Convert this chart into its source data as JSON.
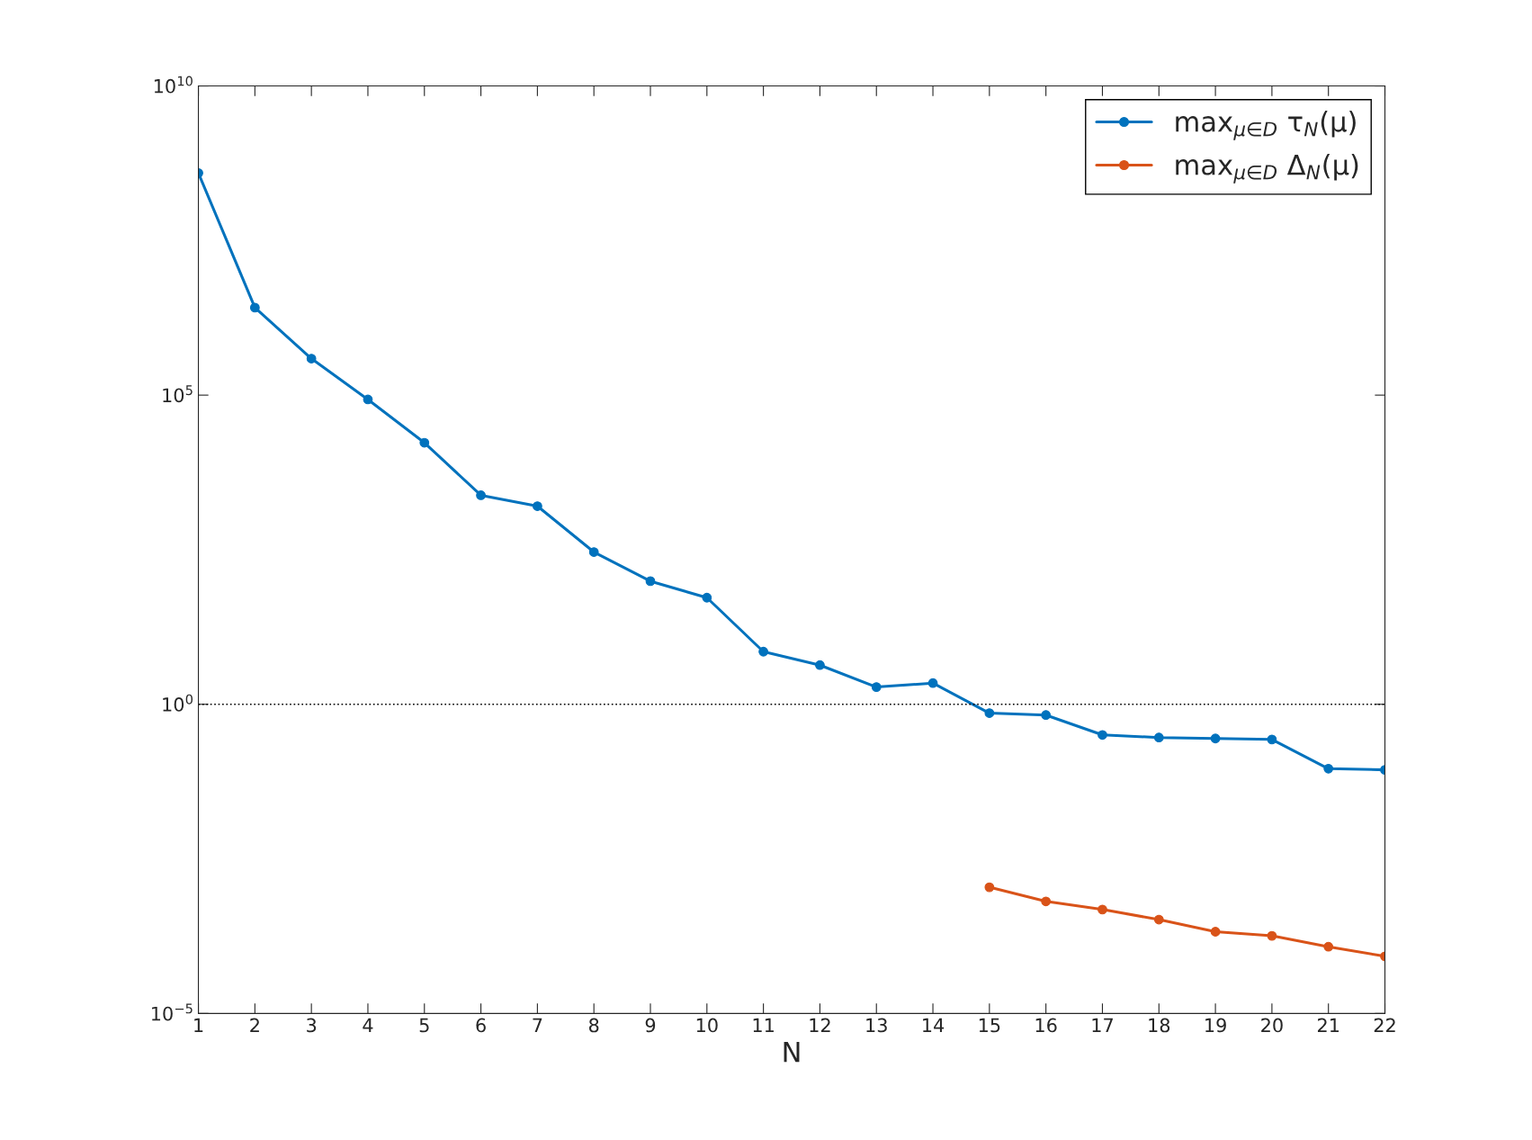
{
  "chart_data": {
    "type": "line",
    "xlabel": "N",
    "x": [
      1,
      2,
      3,
      4,
      5,
      6,
      7,
      8,
      9,
      10,
      11,
      12,
      13,
      14,
      15,
      16,
      17,
      18,
      19,
      20,
      21,
      22
    ],
    "series": [
      {
        "name": "max$_{μ∈D}$ τ$_{N}$(μ)",
        "color": "#0072bd",
        "values": [
          390000000,
          2600000,
          390000,
          85000,
          17000,
          2400,
          1600,
          290,
          98,
          53,
          7.1,
          4.3,
          1.9,
          2.2,
          0.72,
          0.67,
          0.32,
          0.29,
          0.28,
          0.27,
          0.091,
          0.087
        ]
      },
      {
        "name": "max$_{μ∈D}$ Δ$_{N}$(μ)",
        "color": "#d95319",
        "values": [
          null,
          null,
          null,
          null,
          null,
          null,
          null,
          null,
          null,
          null,
          null,
          null,
          null,
          null,
          0.0011,
          0.00065,
          0.00048,
          0.00033,
          0.00021,
          0.00018,
          0.00012,
          8.4e-05
        ]
      }
    ],
    "log": "y",
    "xlim": [
      1,
      22
    ],
    "xticks": [
      1,
      2,
      3,
      4,
      5,
      6,
      7,
      8,
      9,
      10,
      11,
      12,
      13,
      14,
      15,
      16,
      17,
      18,
      19,
      20,
      21,
      22
    ],
    "ylim": [
      1e-05,
      10000000000
    ],
    "yticks": [
      {
        "value": 1e-05,
        "label": "10$^{−5}$"
      },
      {
        "value": 1,
        "label": "10$^{0}$"
      },
      {
        "value": 100000,
        "label": "10$^{5}$"
      },
      {
        "value": 10000000000,
        "label": "10$^{10}$"
      }
    ],
    "ref_lines": [
      {
        "axis": "y",
        "value": 1,
        "color": "#000000",
        "line_style": "dotted"
      }
    ],
    "grid": false,
    "legend": "top right",
    "marker": "circle",
    "line_style": "solid"
  }
}
